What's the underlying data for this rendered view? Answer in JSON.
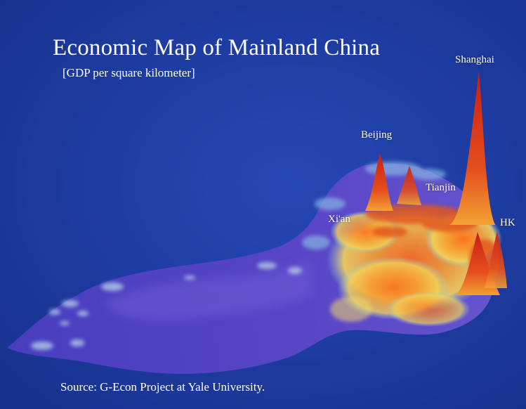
{
  "title": "Economic Map of Mainland China",
  "subtitle": "[GDP per square kilometer]",
  "source": "Source: G-Econ Project at Yale University.",
  "cities": {
    "shanghai": "Shanghai",
    "beijing": "Beijing",
    "tianjin": "Tianjin",
    "xian": "Xi'an",
    "hk": "HK"
  },
  "colors": {
    "background": "#1e3da4",
    "land_low": "#5a45c8",
    "mid": "#f5c842",
    "high": "#d8281a"
  }
}
